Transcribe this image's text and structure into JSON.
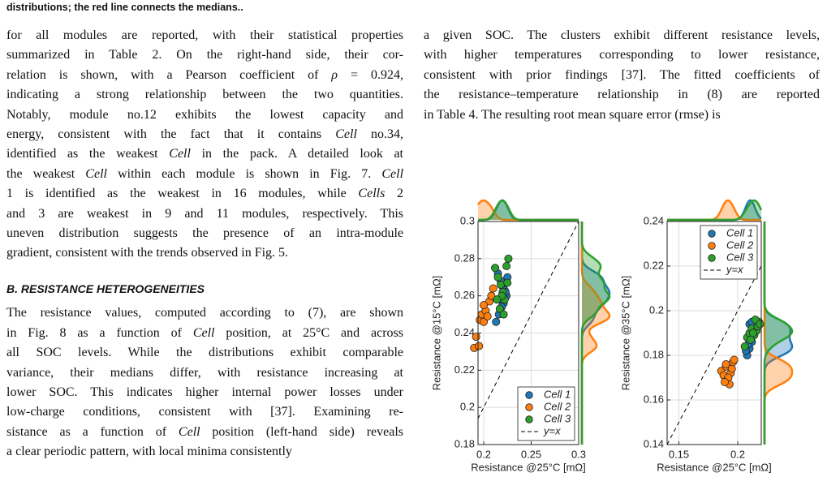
{
  "caption": "distributions; the red line connects the medians..",
  "left_column": {
    "paragraph_1": [
      [
        "for all modules are reported, with their statistical properties"
      ],
      [
        "summarized in Table 2. On the right-hand side, their cor-"
      ],
      [
        "relation is shown, with a Pearson coefficient of ",
        "ρ",
        " = 0.924,"
      ],
      [
        "indicating a strong relationship between the two quantities."
      ],
      [
        "Notably, module no.12 exhibits the lowest capacity and"
      ],
      [
        "energy, consistent with the fact that it contains ",
        "Cell",
        " no.34,"
      ],
      [
        "identified as the weakest ",
        "Cell",
        " in the pack. A detailed look at"
      ],
      [
        "the weakest ",
        "Cell",
        " within each module is shown in Fig. 7. ",
        "Cell"
      ],
      [
        "1 is identified as the weakest in 16 modules, while ",
        "Cells",
        " 2"
      ],
      [
        "and 3 are weakest in 9 and 11 modules, respectively. This"
      ],
      [
        "uneven distribution suggests the presence of an intra-module"
      ],
      [
        "gradient, consistent with the trends observed in Fig. 5."
      ]
    ],
    "heading": "B. RESISTANCE HETEROGENEITIES",
    "paragraph_2": [
      [
        "The resistance values, computed according to (7), are shown"
      ],
      [
        "in Fig. 8 as a function of ",
        "Cell",
        " position, at 25°C and across"
      ],
      [
        "all SOC levels. While the distributions exhibit comparable"
      ],
      [
        "variance, their medians differ, with resistance increasing at"
      ],
      [
        "lower SOC. This indicates higher internal power losses under"
      ],
      [
        "low-charge conditions, consistent with [37]. Examining re-"
      ],
      [
        "sistance as a function of ",
        "Cell",
        " position (left-hand side) reveals"
      ],
      [
        "a clear periodic pattern, with local minima consistently"
      ]
    ]
  },
  "right_column": {
    "paragraph": [
      [
        "a given SOC. The clusters exhibit different resistance levels,"
      ],
      [
        "with higher temperatures corresponding to lower resistance,"
      ],
      [
        "consistent with prior findings [37]. The fitted coefficients of"
      ],
      [
        "the resistance–temperature relationship in (8) are reported"
      ],
      [
        "in Table 4. The resulting root mean square error (rmse) is"
      ]
    ]
  },
  "chart_data": [
    {
      "type": "scatter",
      "xlabel": "Resistance @25°C [mΩ]",
      "ylabel": "Resistance @15°C [mΩ]",
      "xlim": [
        0.194,
        0.3
      ],
      "ylim": [
        0.18,
        0.3
      ],
      "xticks": [
        0.2,
        0.25,
        0.3
      ],
      "yticks": [
        0.18,
        0.2,
        0.22,
        0.24,
        0.26,
        0.28,
        0.3
      ],
      "grid": true,
      "legend": "lower right",
      "series": [
        {
          "name": "Cell 1",
          "color": "#1f77b4",
          "x": [
            0.215,
            0.218,
            0.22,
            0.222,
            0.224,
            0.217,
            0.221,
            0.219,
            0.223,
            0.216,
            0.213,
            0.225
          ],
          "values": [
            0.272,
            0.268,
            0.265,
            0.263,
            0.26,
            0.258,
            0.256,
            0.254,
            0.262,
            0.25,
            0.246,
            0.27
          ]
        },
        {
          "name": "Cell 2",
          "color": "#ff7f0e",
          "x": [
            0.19,
            0.192,
            0.196,
            0.198,
            0.2,
            0.202,
            0.204,
            0.206,
            0.208,
            0.21,
            0.195,
            0.2
          ],
          "values": [
            0.232,
            0.238,
            0.247,
            0.25,
            0.246,
            0.252,
            0.249,
            0.257,
            0.26,
            0.264,
            0.233,
            0.255
          ]
        },
        {
          "name": "Cell 3",
          "color": "#2ca02c",
          "x": [
            0.212,
            0.215,
            0.218,
            0.22,
            0.222,
            0.224,
            0.226,
            0.217,
            0.221,
            0.219,
            0.225,
            0.214
          ],
          "values": [
            0.275,
            0.27,
            0.266,
            0.262,
            0.258,
            0.276,
            0.28,
            0.253,
            0.25,
            0.26,
            0.267,
            0.258
          ]
        },
        {
          "name": "y=x",
          "color": "#000000",
          "line_style": "dashed"
        }
      ]
    },
    {
      "type": "scatter",
      "xlabel": "Resistance @25°C [mΩ]",
      "ylabel": "Resistance @35°C [mΩ]",
      "xlim": [
        0.14,
        0.22
      ],
      "ylim": [
        0.14,
        0.24
      ],
      "xticks": [
        0.15,
        0.2
      ],
      "yticks": [
        0.14,
        0.16,
        0.18,
        0.2,
        0.22,
        0.24
      ],
      "grid": true,
      "legend": "upper right",
      "series": [
        {
          "name": "Cell 1",
          "color": "#1f77b4",
          "x": [
            0.208,
            0.21,
            0.212,
            0.211,
            0.213,
            0.209,
            0.214,
            0.21,
            0.207,
            0.212
          ],
          "values": [
            0.18,
            0.183,
            0.186,
            0.189,
            0.192,
            0.185,
            0.19,
            0.194,
            0.182,
            0.195
          ]
        },
        {
          "name": "Cell 2",
          "color": "#ff7f0e",
          "x": [
            0.186,
            0.188,
            0.19,
            0.191,
            0.193,
            0.194,
            0.195,
            0.196,
            0.197,
            0.19,
            0.192,
            0.189
          ],
          "values": [
            0.173,
            0.171,
            0.175,
            0.169,
            0.167,
            0.172,
            0.174,
            0.177,
            0.178,
            0.176,
            0.17,
            0.168
          ]
        },
        {
          "name": "Cell 3",
          "color": "#2ca02c",
          "x": [
            0.206,
            0.208,
            0.21,
            0.212,
            0.214,
            0.216,
            0.218,
            0.215,
            0.217,
            0.211,
            0.219,
            0.213
          ],
          "values": [
            0.184,
            0.188,
            0.19,
            0.192,
            0.189,
            0.191,
            0.195,
            0.196,
            0.193,
            0.187,
            0.194,
            0.19
          ]
        },
        {
          "name": "y=x",
          "color": "#000000",
          "line_style": "dashed"
        }
      ]
    }
  ]
}
